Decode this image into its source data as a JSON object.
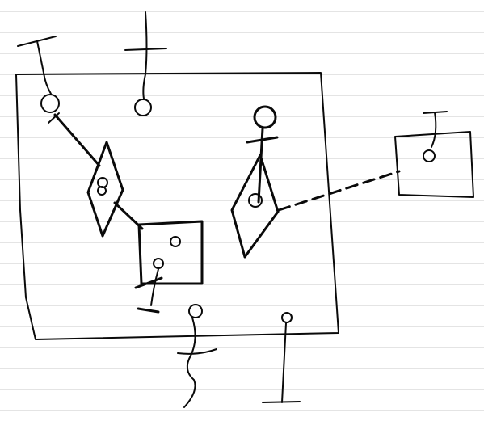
{
  "colors": {
    "paper": "#ffffff",
    "rule_line": "#c9c9c9",
    "ink": "#0a0a0a"
  },
  "figure": {
    "description_visible_text": "",
    "elements": [
      "outer-box",
      "pinned-stick-top-left",
      "pinned-stick-top",
      "diamond-left",
      "square-middle",
      "female-symbol-stick",
      "diamond-right",
      "dashed-connector",
      "external-box-right",
      "bottom-wavy-stick",
      "bottom-right-stick",
      "pin-below-square"
    ]
  }
}
